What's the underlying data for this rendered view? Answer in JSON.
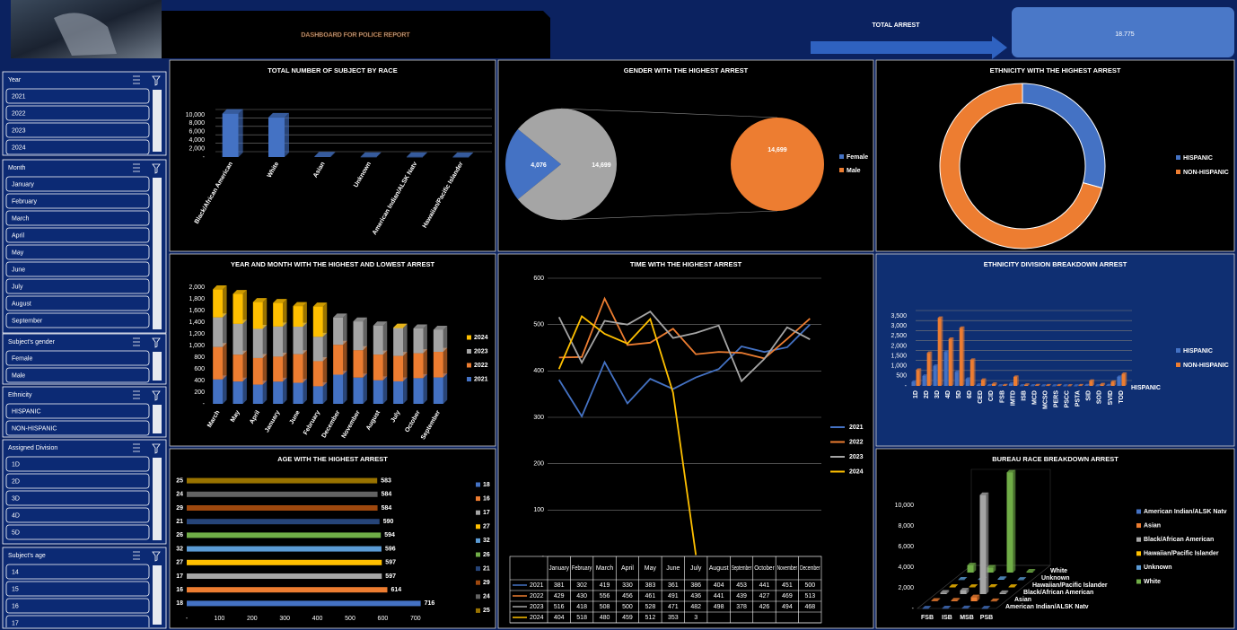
{
  "header": {
    "title": "DASHBOARD FOR POLICE REPORT",
    "total_label": "TOTAL ARREST",
    "total_value": "18.775"
  },
  "slicers": [
    {
      "title": "Year",
      "items": [
        "2021",
        "2022",
        "2023",
        "2024"
      ]
    },
    {
      "title": "Month",
      "items": [
        "January",
        "February",
        "March",
        "April",
        "May",
        "June",
        "July",
        "August",
        "September"
      ]
    },
    {
      "title": "Subject's gender",
      "items": [
        "Female",
        "Male"
      ]
    },
    {
      "title": "Ethnicity",
      "items": [
        "HISPANIC",
        "NON-HISPANIC"
      ]
    },
    {
      "title": "Assigned Division",
      "items": [
        "1D",
        "2D",
        "3D",
        "4D",
        "5D"
      ]
    },
    {
      "title": "Subject's age",
      "items": [
        "14",
        "15",
        "16",
        "17"
      ]
    }
  ],
  "chart_data": [
    {
      "type": "bar3d",
      "title": "TOTAL NUMBER OF SUBJECT BY RACE",
      "categories": [
        "Black/African American",
        "White",
        "Asian",
        "Unknown",
        "American Indian/ALSK Natv",
        "Hawaiian/Pacific Islander"
      ],
      "values": [
        10300,
        9400,
        150,
        50,
        40,
        30
      ],
      "color": "#4472c4",
      "ylim": [
        0,
        10000
      ],
      "yticks": [
        {
          "value": 0,
          "label": "-"
        },
        {
          "value": 2000,
          "label": "2,000"
        },
        {
          "value": 4000,
          "label": "4,000"
        },
        {
          "value": 6000,
          "label": "6,000"
        },
        {
          "value": 8000,
          "label": "8,000"
        },
        {
          "value": 10000,
          "label": "10,000"
        }
      ]
    },
    {
      "type": "pie_of_pie",
      "title": "GENDER WITH THE HIGHEST ARREST",
      "categories": [
        "Female",
        "Male"
      ],
      "values": [
        4076,
        14699
      ],
      "value_labels": [
        "4,076",
        "14,699"
      ],
      "colors": [
        "#4472c4",
        "#ed7d31"
      ],
      "other_color": "#a5a5a5"
    },
    {
      "type": "donut",
      "title": "ETHNICITY WITH THE HIGHEST ARREST",
      "categories": [
        "HISPANIC",
        "NON-HISPANIC"
      ],
      "values": [
        5500,
        13275
      ],
      "colors": [
        "#4472c4",
        "#ed7d31"
      ]
    },
    {
      "type": "stacked_bar",
      "title": "YEAR AND MONTH WITH THE HIGHEST AND LOWEST ARREST",
      "categories": [
        "March",
        "May",
        "April",
        "January",
        "June",
        "February",
        "December",
        "November",
        "August",
        "July",
        "October",
        "September"
      ],
      "series": [
        {
          "name": "2021",
          "color": "#4472c4",
          "values": [
            419,
            383,
            330,
            381,
            361,
            302,
            500,
            451,
            404,
            386,
            441,
            453
          ]
        },
        {
          "name": "2022",
          "color": "#ed7d31",
          "values": [
            556,
            461,
            456,
            429,
            491,
            430,
            513,
            469,
            441,
            436,
            427,
            439
          ]
        },
        {
          "name": "2023",
          "color": "#a5a5a5",
          "values": [
            508,
            528,
            500,
            516,
            471,
            418,
            468,
            494,
            498,
            482,
            426,
            378
          ]
        },
        {
          "name": "2024",
          "color": "#ffc000",
          "values": [
            480,
            512,
            459,
            404,
            353,
            518,
            null,
            null,
            null,
            3,
            null,
            null
          ]
        }
      ],
      "ylim": [
        0,
        2000
      ],
      "yticks": [
        {
          "value": 0,
          "label": "-"
        },
        200,
        400,
        600,
        800,
        {
          "value": 1000,
          "label": "1,000"
        },
        {
          "value": 1200,
          "label": "1,200"
        },
        {
          "value": 1400,
          "label": "1,400"
        },
        {
          "value": 1600,
          "label": "1,600"
        },
        {
          "value": 1800,
          "label": "1,800"
        },
        {
          "value": 2000,
          "label": "2,000"
        }
      ]
    },
    {
      "type": "line",
      "title": "TIME WITH THE HIGHEST ARREST",
      "categories": [
        "January",
        "February",
        "March",
        "April",
        "May",
        "June",
        "July",
        "August",
        "September",
        "October",
        "November",
        "December"
      ],
      "series": [
        {
          "name": "2021",
          "color": "#4472c4",
          "values": [
            381,
            302,
            419,
            330,
            383,
            361,
            386,
            404,
            453,
            441,
            451,
            500
          ]
        },
        {
          "name": "2022",
          "color": "#ed7d31",
          "values": [
            429,
            430,
            556,
            456,
            461,
            491,
            436,
            441,
            439,
            427,
            469,
            513
          ]
        },
        {
          "name": "2023",
          "color": "#a5a5a5",
          "values": [
            516,
            418,
            508,
            500,
            528,
            471,
            482,
            498,
            378,
            426,
            494,
            468
          ]
        },
        {
          "name": "2024",
          "color": "#ffc000",
          "values": [
            404,
            518,
            480,
            459,
            512,
            353,
            3,
            null,
            null,
            null,
            null,
            null
          ]
        }
      ],
      "ylim": [
        0,
        600
      ],
      "yticks": [
        {
          "value": 0,
          "label": "-"
        },
        100,
        200,
        300,
        400,
        500,
        600
      ],
      "grid": true
    },
    {
      "type": "grouped_bar",
      "title": "ETHNICITY DIVISION BREAKDOWN ARREST",
      "categories": [
        "1D",
        "2D",
        "3D",
        "4D",
        "5D",
        "6D",
        "CED",
        "CID",
        "FSB",
        "IMTD",
        "ISB",
        "MCD",
        "MCSO",
        "PERS",
        "PSCC",
        "PSTA",
        "SID",
        "SOD",
        "SVID",
        "TOD"
      ],
      "series": [
        {
          "name": "HISPANIC",
          "color": "#4472c4",
          "values": [
            200,
            500,
            1000,
            1700,
            700,
            350,
            50,
            20,
            10,
            100,
            10,
            10,
            5,
            5,
            5,
            5,
            30,
            10,
            30,
            450
          ]
        },
        {
          "name": "NON-HISPANIC",
          "color": "#ed7d31",
          "values": [
            800,
            1650,
            3400,
            2350,
            2900,
            1300,
            300,
            100,
            30,
            450,
            50,
            30,
            20,
            20,
            10,
            20,
            250,
            80,
            200,
            600
          ]
        }
      ],
      "depth_label": "HISPANIC",
      "ylim": [
        0,
        3500
      ],
      "yticks": [
        {
          "value": 0,
          "label": "-"
        },
        500,
        {
          "value": 1000,
          "label": "1,000"
        },
        {
          "value": 1500,
          "label": "1,500"
        },
        {
          "value": 2000,
          "label": "2,000"
        },
        {
          "value": 2500,
          "label": "2,500"
        },
        {
          "value": 3000,
          "label": "3,000"
        },
        {
          "value": 3500,
          "label": "3,500"
        }
      ]
    },
    {
      "type": "hbar",
      "title": "AGE WITH THE HIGHEST ARREST",
      "categories": [
        "25",
        "24",
        "29",
        "21",
        "26",
        "32",
        "27",
        "17",
        "16",
        "18"
      ],
      "values": [
        583,
        584,
        584,
        590,
        594,
        596,
        597,
        597,
        614,
        716
      ],
      "colors": [
        "#997300",
        "#636363",
        "#9e480e",
        "#264478",
        "#70ad47",
        "#5b9bd5",
        "#ffc000",
        "#a5a5a5",
        "#ed7d31",
        "#4472c4"
      ],
      "legend": [
        "18",
        "16",
        "17",
        "27",
        "32",
        "26",
        "21",
        "29",
        "24",
        "25"
      ],
      "xlim": [
        0,
        750
      ],
      "xticks": [
        {
          "value": 0,
          "label": "-"
        },
        100,
        200,
        300,
        400,
        500,
        600,
        700
      ]
    },
    {
      "type": "bar3d_grouped",
      "title": "BUREAU RACE BREAKDOWN ARREST",
      "categories": [
        "FSB",
        "ISB",
        "MSB",
        "PSB"
      ],
      "series": [
        {
          "name": "American Indian/ALSK Natv",
          "color": "#4472c4",
          "values": [
            10,
            20,
            30,
            10
          ]
        },
        {
          "name": "Asian",
          "color": "#ed7d31",
          "values": [
            60,
            80,
            400,
            30
          ]
        },
        {
          "name": "Black/African American",
          "color": "#a5a5a5",
          "values": [
            150,
            350,
            9600,
            120
          ]
        },
        {
          "name": "Hawaiian/Pacific Islander",
          "color": "#ffc000",
          "values": [
            5,
            10,
            20,
            5
          ]
        },
        {
          "name": "Unknown",
          "color": "#5b9bd5",
          "values": [
            20,
            30,
            80,
            10
          ]
        },
        {
          "name": "White",
          "color": "#70ad47",
          "values": [
            700,
            500,
            9700,
            100
          ]
        }
      ],
      "ylim": [
        0,
        10000
      ],
      "yticks": [
        {
          "value": 0,
          "label": "-"
        },
        {
          "value": 2000,
          "label": "2,000"
        },
        {
          "value": 4000,
          "label": "4,000"
        },
        {
          "value": 6000,
          "label": "6,000"
        },
        {
          "value": 8000,
          "label": "8,000"
        },
        {
          "value": 10000,
          "label": "10,000"
        }
      ]
    }
  ]
}
